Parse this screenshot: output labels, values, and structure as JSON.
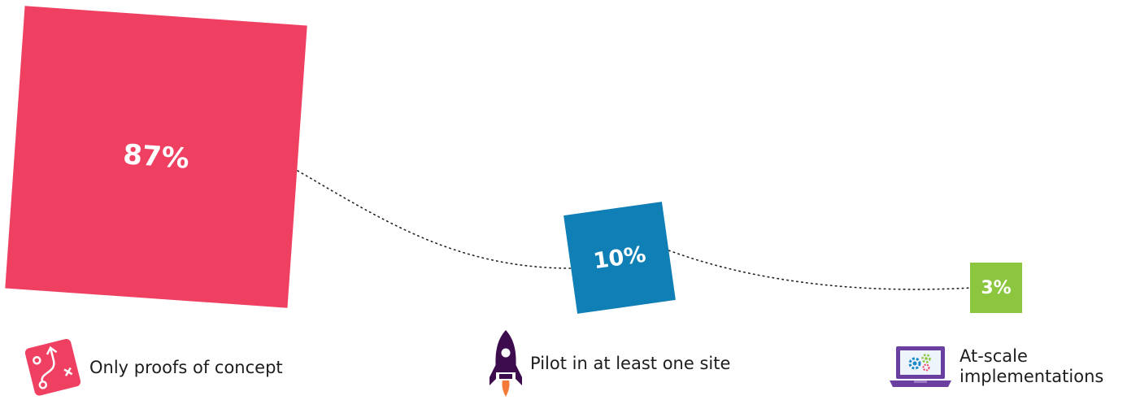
{
  "chart_data": {
    "type": "area",
    "title": "",
    "series": [
      {
        "category": "Only proofs of concept",
        "value": 87,
        "label": "87%",
        "color": "#f04062"
      },
      {
        "category": "Pilot in at least one site",
        "value": 10,
        "label": "10%",
        "color": "#0f7fb5"
      },
      {
        "category": "At-scale implementations",
        "value": 3,
        "label": "3%",
        "color": "#8cc63f"
      }
    ],
    "connector": "dotted"
  },
  "captions": [
    {
      "text": "Only proofs of concept",
      "icon": "map-route-icon"
    },
    {
      "text": "Pilot in at least one site",
      "icon": "rocket-icon"
    },
    {
      "text": "At-scale implementations",
      "icon": "laptop-gears-icon"
    }
  ]
}
